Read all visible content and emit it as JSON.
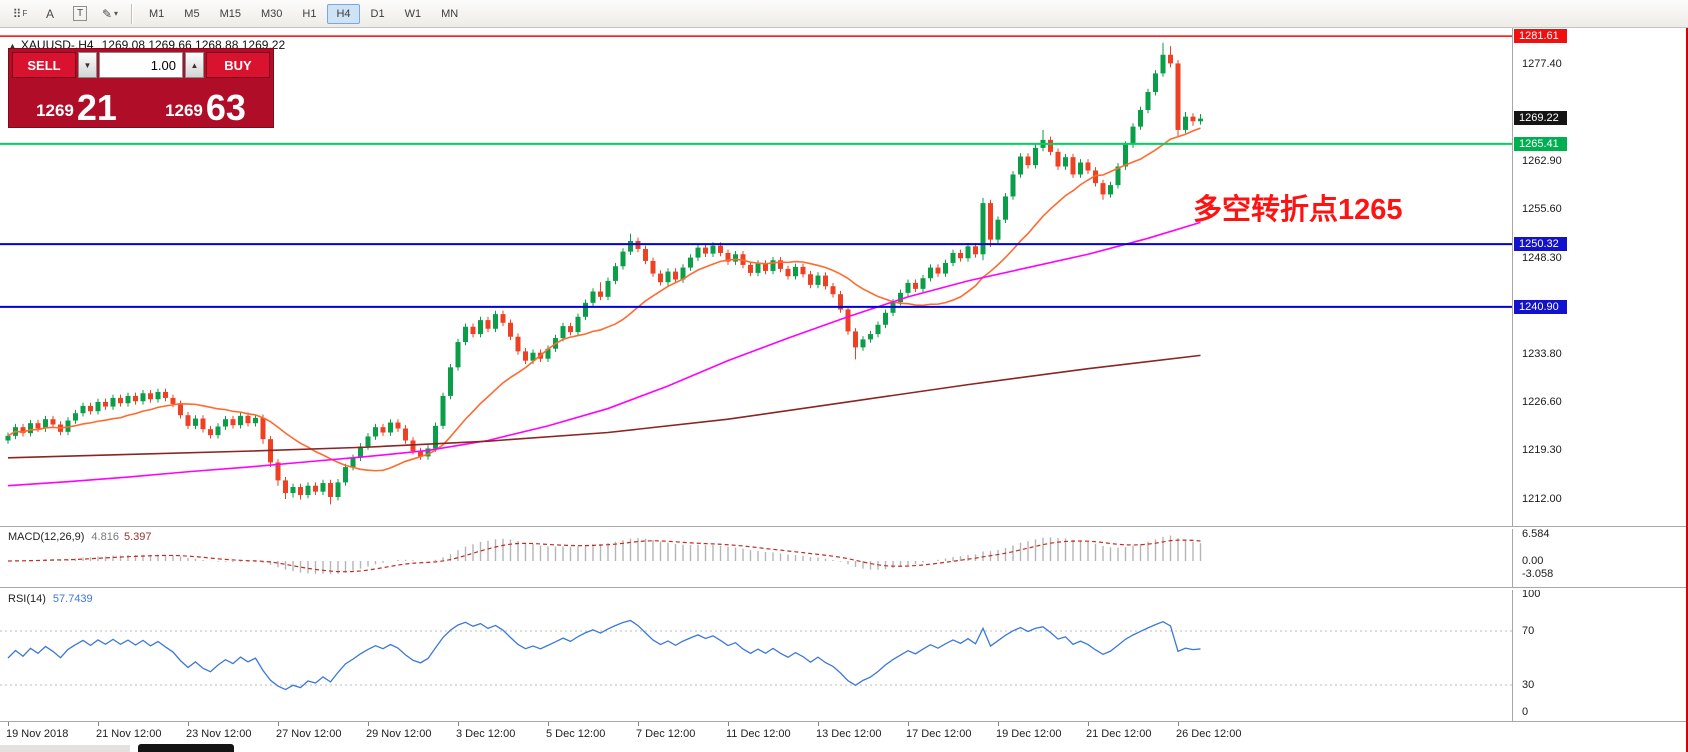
{
  "toolbar": {
    "icons": [
      {
        "name": "new-chart-grid",
        "glyph": "⠿",
        "sub": "F"
      },
      {
        "name": "cursor",
        "glyph": "A"
      },
      {
        "name": "text-label",
        "glyph": "T"
      },
      {
        "name": "draw-objects",
        "glyph": "✎",
        "caret": "▾"
      }
    ],
    "timeframes": [
      {
        "label": "M1",
        "active": false
      },
      {
        "label": "M5",
        "active": false
      },
      {
        "label": "M15",
        "active": false
      },
      {
        "label": "M30",
        "active": false
      },
      {
        "label": "H1",
        "active": false
      },
      {
        "label": "H4",
        "active": true
      },
      {
        "label": "D1",
        "active": false
      },
      {
        "label": "W1",
        "active": false
      },
      {
        "label": "MN",
        "active": false
      }
    ]
  },
  "chart": {
    "header": {
      "marker": "▲",
      "symbol": "XAUUSD-,H4",
      "ohlc": "1269.08 1269.66 1268.88 1269.22"
    },
    "annotation": {
      "text": "多空转折点1265",
      "color": "#FF1212"
    }
  },
  "trade_panel": {
    "sell_label": "SELL",
    "buy_label": "BUY",
    "volume": "1.00",
    "sell_price": {
      "main": "1269",
      "pips": "21"
    },
    "buy_price": {
      "main": "1269",
      "pips": "63"
    }
  },
  "price_axis": {
    "boxes": [
      {
        "value": "1281.61",
        "price": 1281.61,
        "color": "#F01010"
      },
      {
        "value": "1269.22",
        "price": 1269.22,
        "color": "#141414"
      },
      {
        "value": "1265.41",
        "price": 1265.41,
        "color": "#00B050"
      },
      {
        "value": "1250.32",
        "price": 1250.32,
        "color": "#1212CC"
      },
      {
        "value": "1240.90",
        "price": 1240.9,
        "color": "#1212CC"
      }
    ],
    "labels": [
      {
        "value": "1277.40",
        "price": 1277.4
      },
      {
        "value": "1262.90",
        "price": 1262.9
      },
      {
        "value": "1255.60",
        "price": 1255.6
      },
      {
        "value": "1248.30",
        "price": 1248.3
      },
      {
        "value": "1233.80",
        "price": 1233.8
      },
      {
        "value": "1226.60",
        "price": 1226.6
      },
      {
        "value": "1219.30",
        "price": 1219.3
      },
      {
        "value": "1212.00",
        "price": 1212.0
      }
    ]
  },
  "indicators": {
    "macd": {
      "name": "MACD(12,26,9)",
      "value1": "4.816",
      "value2": "5.397",
      "axis": [
        "6.584",
        "0.00",
        "-3.058"
      ]
    },
    "rsi": {
      "name": "RSI(14)",
      "value": "57.7439",
      "axis": [
        "100",
        "70",
        "30",
        "0"
      ]
    }
  },
  "chart_data": {
    "type": "candlestick",
    "symbol": "XAUUSD-",
    "timeframe": "H4",
    "current_bar": {
      "open": 1269.08,
      "high": 1269.66,
      "low": 1268.88,
      "close": 1269.22
    },
    "bid": 1269.21,
    "ask": 1269.63,
    "price_range": [
      1208.0,
      1283.5
    ],
    "up_color": "#0A9E48",
    "down_color": "#EE4023",
    "hlines": [
      {
        "price": 1281.61,
        "color": "#FF0000",
        "width": 1.5
      },
      {
        "price": 1265.41,
        "color": "#00D25F",
        "width": 2
      },
      {
        "price": 1250.32,
        "color": "#0000DD",
        "width": 2
      },
      {
        "price": 1240.9,
        "color": "#0000DD",
        "width": 2
      }
    ],
    "ma_fast": {
      "type": "sma",
      "period": 16,
      "color": "#FF6B2E"
    },
    "ma_medium": {
      "color": "#FF00FF",
      "points": [
        [
          0,
          1214.0
        ],
        [
          8,
          1214.6
        ],
        [
          16,
          1215.3
        ],
        [
          24,
          1216.1
        ],
        [
          32,
          1216.8
        ],
        [
          40,
          1217.6
        ],
        [
          48,
          1218.4
        ],
        [
          56,
          1219.3
        ],
        [
          64,
          1220.8
        ],
        [
          72,
          1223.0
        ],
        [
          80,
          1225.6
        ],
        [
          88,
          1229.0
        ],
        [
          96,
          1232.8
        ],
        [
          104,
          1236.2
        ],
        [
          112,
          1239.4
        ],
        [
          120,
          1242.4
        ],
        [
          128,
          1244.8
        ],
        [
          136,
          1246.8
        ],
        [
          144,
          1248.8
        ],
        [
          152,
          1251.2
        ],
        [
          159,
          1253.6
        ]
      ]
    },
    "ma_slow": {
      "color": "#8B2424",
      "points": [
        [
          0,
          1218.2
        ],
        [
          16,
          1218.7
        ],
        [
          32,
          1219.2
        ],
        [
          48,
          1219.8
        ],
        [
          64,
          1220.7
        ],
        [
          80,
          1222.0
        ],
        [
          96,
          1224.0
        ],
        [
          112,
          1226.6
        ],
        [
          128,
          1229.2
        ],
        [
          144,
          1231.6
        ],
        [
          159,
          1233.6
        ]
      ]
    },
    "macd": {
      "fast": 12,
      "slow": 26,
      "signal": 9,
      "hist_color": "#B5B5B5",
      "signal_color": "#C22C22"
    },
    "rsi": {
      "period": 14,
      "color": "#3C78D8",
      "levels": [
        70,
        30
      ],
      "level_color": "#BDBDBD"
    },
    "time_labels": [
      {
        "i": 0,
        "label": "19 Nov 2018"
      },
      {
        "i": 12,
        "label": "21 Nov 12:00"
      },
      {
        "i": 24,
        "label": "23 Nov 12:00"
      },
      {
        "i": 36,
        "label": "27 Nov 12:00"
      },
      {
        "i": 48,
        "label": "29 Nov 12:00"
      },
      {
        "i": 60,
        "label": "3 Dec 12:00"
      },
      {
        "i": 72,
        "label": "5 Dec 12:00"
      },
      {
        "i": 84,
        "label": "7 Dec 12:00"
      },
      {
        "i": 96,
        "label": "11 Dec 12:00"
      },
      {
        "i": 108,
        "label": "13 Dec 12:00"
      },
      {
        "i": 120,
        "label": "17 Dec 12:00"
      },
      {
        "i": 132,
        "label": "19 Dec 12:00"
      },
      {
        "i": 144,
        "label": "21 Dec 12:00"
      },
      {
        "i": 156,
        "label": "26 Dec 12:00"
      }
    ],
    "candles": [
      [
        1220.8,
        1222.0,
        1220.3,
        1221.5
      ],
      [
        1221.5,
        1223.3,
        1221.0,
        1222.8
      ],
      [
        1222.8,
        1223.3,
        1221.4,
        1221.9
      ],
      [
        1221.9,
        1223.9,
        1221.4,
        1223.4
      ],
      [
        1223.4,
        1223.9,
        1222.1,
        1222.6
      ],
      [
        1222.6,
        1224.5,
        1222.1,
        1224.0
      ],
      [
        1224.0,
        1224.5,
        1222.7,
        1223.2
      ],
      [
        1223.2,
        1223.7,
        1221.6,
        1222.1
      ],
      [
        1222.1,
        1224.3,
        1221.6,
        1223.8
      ],
      [
        1223.8,
        1225.4,
        1223.3,
        1224.9
      ],
      [
        1224.9,
        1226.5,
        1224.4,
        1226.0
      ],
      [
        1226.0,
        1226.5,
        1224.7,
        1225.2
      ],
      [
        1225.2,
        1227.1,
        1224.7,
        1226.6
      ],
      [
        1226.6,
        1227.1,
        1225.4,
        1225.9
      ],
      [
        1225.9,
        1227.7,
        1225.4,
        1227.2
      ],
      [
        1227.2,
        1227.7,
        1225.9,
        1226.4
      ],
      [
        1226.4,
        1228.0,
        1225.9,
        1227.5
      ],
      [
        1227.5,
        1228.0,
        1226.2,
        1226.7
      ],
      [
        1226.7,
        1228.4,
        1226.2,
        1227.9
      ],
      [
        1227.9,
        1228.4,
        1226.5,
        1227.0
      ],
      [
        1227.0,
        1228.6,
        1226.5,
        1228.1
      ],
      [
        1228.1,
        1228.6,
        1226.7,
        1227.2
      ],
      [
        1227.2,
        1227.7,
        1225.8,
        1226.3
      ],
      [
        1226.3,
        1226.8,
        1224.1,
        1224.6
      ],
      [
        1224.6,
        1225.1,
        1222.5,
        1223.0
      ],
      [
        1223.0,
        1224.6,
        1222.5,
        1224.1
      ],
      [
        1224.1,
        1224.6,
        1222.0,
        1222.5
      ],
      [
        1222.5,
        1223.0,
        1221.1,
        1221.6
      ],
      [
        1221.6,
        1223.4,
        1221.1,
        1222.9
      ],
      [
        1222.9,
        1224.5,
        1222.4,
        1224.0
      ],
      [
        1224.0,
        1224.5,
        1222.6,
        1223.1
      ],
      [
        1223.1,
        1225.0,
        1222.6,
        1224.5
      ],
      [
        1224.5,
        1225.0,
        1222.9,
        1223.4
      ],
      [
        1223.4,
        1224.7,
        1222.9,
        1224.2
      ],
      [
        1224.2,
        1224.7,
        1220.3,
        1221.0
      ],
      [
        1221.0,
        1221.5,
        1216.8,
        1217.5
      ],
      [
        1217.5,
        1218.0,
        1214.0,
        1214.8
      ],
      [
        1214.8,
        1215.3,
        1212.0,
        1212.9
      ],
      [
        1212.9,
        1214.3,
        1212.2,
        1213.8
      ],
      [
        1213.8,
        1214.3,
        1211.9,
        1212.6
      ],
      [
        1212.6,
        1214.5,
        1212.1,
        1214.0
      ],
      [
        1214.0,
        1214.5,
        1212.6,
        1213.1
      ],
      [
        1213.1,
        1214.9,
        1212.6,
        1214.4
      ],
      [
        1214.4,
        1214.9,
        1211.2,
        1212.3
      ],
      [
        1212.3,
        1215.0,
        1211.8,
        1214.5
      ],
      [
        1214.5,
        1217.3,
        1214.0,
        1216.8
      ],
      [
        1216.8,
        1218.7,
        1216.3,
        1218.2
      ],
      [
        1218.2,
        1220.4,
        1217.7,
        1219.9
      ],
      [
        1219.9,
        1221.9,
        1219.4,
        1221.4
      ],
      [
        1221.4,
        1223.3,
        1220.9,
        1222.8
      ],
      [
        1222.8,
        1223.3,
        1221.5,
        1222.0
      ],
      [
        1222.0,
        1224.0,
        1221.5,
        1223.5
      ],
      [
        1223.5,
        1224.0,
        1222.1,
        1222.6
      ],
      [
        1222.6,
        1223.1,
        1220.3,
        1220.8
      ],
      [
        1220.8,
        1221.3,
        1218.7,
        1219.2
      ],
      [
        1219.2,
        1219.7,
        1217.9,
        1218.4
      ],
      [
        1218.4,
        1220.1,
        1217.9,
        1219.6
      ],
      [
        1219.6,
        1223.5,
        1219.1,
        1223.0
      ],
      [
        1223.0,
        1228.0,
        1222.5,
        1227.5
      ],
      [
        1227.5,
        1232.3,
        1227.0,
        1231.8
      ],
      [
        1231.8,
        1236.1,
        1231.3,
        1235.6
      ],
      [
        1235.6,
        1238.4,
        1235.1,
        1237.9
      ],
      [
        1237.9,
        1238.4,
        1236.3,
        1236.8
      ],
      [
        1236.8,
        1239.4,
        1236.3,
        1238.9
      ],
      [
        1238.9,
        1239.4,
        1237.1,
        1237.6
      ],
      [
        1237.6,
        1240.3,
        1237.1,
        1239.8
      ],
      [
        1239.8,
        1240.3,
        1238.0,
        1238.5
      ],
      [
        1238.5,
        1239.0,
        1235.9,
        1236.4
      ],
      [
        1236.4,
        1236.9,
        1233.7,
        1234.2
      ],
      [
        1234.2,
        1234.7,
        1232.3,
        1232.8
      ],
      [
        1232.8,
        1234.5,
        1232.3,
        1234.0
      ],
      [
        1234.0,
        1234.5,
        1232.6,
        1233.1
      ],
      [
        1233.1,
        1235.1,
        1232.6,
        1234.6
      ],
      [
        1234.6,
        1236.7,
        1234.1,
        1236.2
      ],
      [
        1236.2,
        1238.5,
        1235.7,
        1238.0
      ],
      [
        1238.0,
        1238.5,
        1236.6,
        1237.1
      ],
      [
        1237.1,
        1239.9,
        1236.6,
        1239.4
      ],
      [
        1239.4,
        1242.0,
        1238.9,
        1241.5
      ],
      [
        1241.5,
        1243.7,
        1241.0,
        1243.2
      ],
      [
        1243.2,
        1244.6,
        1241.9,
        1242.4
      ],
      [
        1242.4,
        1245.3,
        1241.9,
        1244.8
      ],
      [
        1244.8,
        1247.5,
        1244.3,
        1247.0
      ],
      [
        1247.0,
        1249.7,
        1246.5,
        1249.2
      ],
      [
        1249.2,
        1251.9,
        1248.7,
        1250.8
      ],
      [
        1250.8,
        1251.3,
        1249.1,
        1249.6
      ],
      [
        1249.6,
        1250.1,
        1247.3,
        1247.8
      ],
      [
        1247.8,
        1248.3,
        1245.4,
        1245.9
      ],
      [
        1245.9,
        1246.4,
        1244.1,
        1244.6
      ],
      [
        1244.6,
        1246.7,
        1244.1,
        1246.2
      ],
      [
        1246.2,
        1246.7,
        1244.5,
        1245.0
      ],
      [
        1245.0,
        1247.3,
        1244.5,
        1246.8
      ],
      [
        1246.8,
        1248.8,
        1246.3,
        1248.3
      ],
      [
        1248.3,
        1250.3,
        1247.8,
        1249.8
      ],
      [
        1249.8,
        1250.3,
        1248.4,
        1248.9
      ],
      [
        1248.9,
        1250.6,
        1248.4,
        1250.1
      ],
      [
        1250.1,
        1250.6,
        1248.5,
        1249.0
      ],
      [
        1249.0,
        1249.5,
        1247.2,
        1247.7
      ],
      [
        1247.7,
        1249.3,
        1247.2,
        1248.8
      ],
      [
        1248.8,
        1249.3,
        1246.7,
        1247.2
      ],
      [
        1247.2,
        1247.7,
        1245.5,
        1246.0
      ],
      [
        1246.0,
        1247.9,
        1245.5,
        1247.4
      ],
      [
        1247.4,
        1247.9,
        1245.8,
        1246.3
      ],
      [
        1246.3,
        1248.4,
        1245.8,
        1247.9
      ],
      [
        1247.9,
        1248.4,
        1246.1,
        1246.6
      ],
      [
        1246.6,
        1247.1,
        1245.0,
        1245.5
      ],
      [
        1245.5,
        1247.4,
        1245.0,
        1246.9
      ],
      [
        1246.9,
        1247.4,
        1245.3,
        1245.8
      ],
      [
        1245.8,
        1246.3,
        1243.7,
        1244.2
      ],
      [
        1244.2,
        1246.1,
        1243.7,
        1245.6
      ],
      [
        1245.6,
        1246.1,
        1243.5,
        1244.0
      ],
      [
        1244.0,
        1244.5,
        1242.3,
        1242.8
      ],
      [
        1242.8,
        1243.3,
        1240.0,
        1240.5
      ],
      [
        1240.5,
        1241.0,
        1236.7,
        1237.2
      ],
      [
        1237.2,
        1237.7,
        1233.0,
        1234.8
      ],
      [
        1234.8,
        1236.5,
        1234.3,
        1236.0
      ],
      [
        1236.0,
        1237.3,
        1235.5,
        1236.8
      ],
      [
        1236.8,
        1238.7,
        1236.3,
        1238.2
      ],
      [
        1238.2,
        1240.5,
        1237.7,
        1240.0
      ],
      [
        1240.0,
        1242.1,
        1239.5,
        1241.6
      ],
      [
        1241.6,
        1243.5,
        1241.1,
        1243.0
      ],
      [
        1243.0,
        1245.0,
        1242.5,
        1244.5
      ],
      [
        1244.5,
        1245.0,
        1243.1,
        1243.6
      ],
      [
        1243.6,
        1245.7,
        1243.1,
        1245.2
      ],
      [
        1245.2,
        1247.3,
        1244.7,
        1246.8
      ],
      [
        1246.8,
        1247.3,
        1245.4,
        1245.9
      ],
      [
        1245.9,
        1248.0,
        1245.4,
        1247.5
      ],
      [
        1247.5,
        1249.5,
        1247.0,
        1249.0
      ],
      [
        1249.0,
        1249.5,
        1247.7,
        1248.2
      ],
      [
        1248.2,
        1250.5,
        1247.7,
        1250.0
      ],
      [
        1250.0,
        1250.5,
        1248.3,
        1248.8
      ],
      [
        1248.8,
        1257.3,
        1247.9,
        1256.5
      ],
      [
        1256.5,
        1257.0,
        1249.9,
        1251.0
      ],
      [
        1251.0,
        1254.5,
        1250.5,
        1254.0
      ],
      [
        1254.0,
        1258.0,
        1253.5,
        1257.5
      ],
      [
        1257.5,
        1261.3,
        1257.0,
        1260.8
      ],
      [
        1260.8,
        1264.0,
        1260.3,
        1263.5
      ],
      [
        1263.5,
        1264.0,
        1261.7,
        1262.2
      ],
      [
        1262.2,
        1265.3,
        1261.7,
        1264.8
      ],
      [
        1264.8,
        1267.5,
        1264.3,
        1266.0
      ],
      [
        1266.0,
        1266.5,
        1263.7,
        1264.2
      ],
      [
        1264.2,
        1264.7,
        1261.5,
        1262.0
      ],
      [
        1262.0,
        1263.9,
        1261.5,
        1263.4
      ],
      [
        1263.4,
        1263.9,
        1260.3,
        1260.8
      ],
      [
        1260.8,
        1263.1,
        1260.3,
        1262.6
      ],
      [
        1262.6,
        1263.1,
        1260.9,
        1261.4
      ],
      [
        1261.4,
        1261.9,
        1259.0,
        1259.5
      ],
      [
        1259.5,
        1260.0,
        1257.0,
        1257.8
      ],
      [
        1257.8,
        1259.7,
        1257.3,
        1259.2
      ],
      [
        1259.2,
        1262.5,
        1258.7,
        1262.0
      ],
      [
        1262.0,
        1265.8,
        1261.5,
        1265.3
      ],
      [
        1265.3,
        1268.5,
        1264.8,
        1268.0
      ],
      [
        1268.0,
        1271.0,
        1267.5,
        1270.5
      ],
      [
        1270.5,
        1273.7,
        1270.0,
        1273.2
      ],
      [
        1273.2,
        1276.5,
        1272.7,
        1276.0
      ],
      [
        1276.0,
        1280.6,
        1275.5,
        1278.8
      ],
      [
        1278.8,
        1280.1,
        1276.9,
        1277.5
      ],
      [
        1277.5,
        1278.0,
        1266.5,
        1267.5
      ],
      [
        1267.5,
        1270.2,
        1267.0,
        1269.5
      ],
      [
        1269.5,
        1270.0,
        1268.1,
        1268.8
      ],
      [
        1268.8,
        1269.9,
        1268.3,
        1269.2
      ]
    ]
  }
}
